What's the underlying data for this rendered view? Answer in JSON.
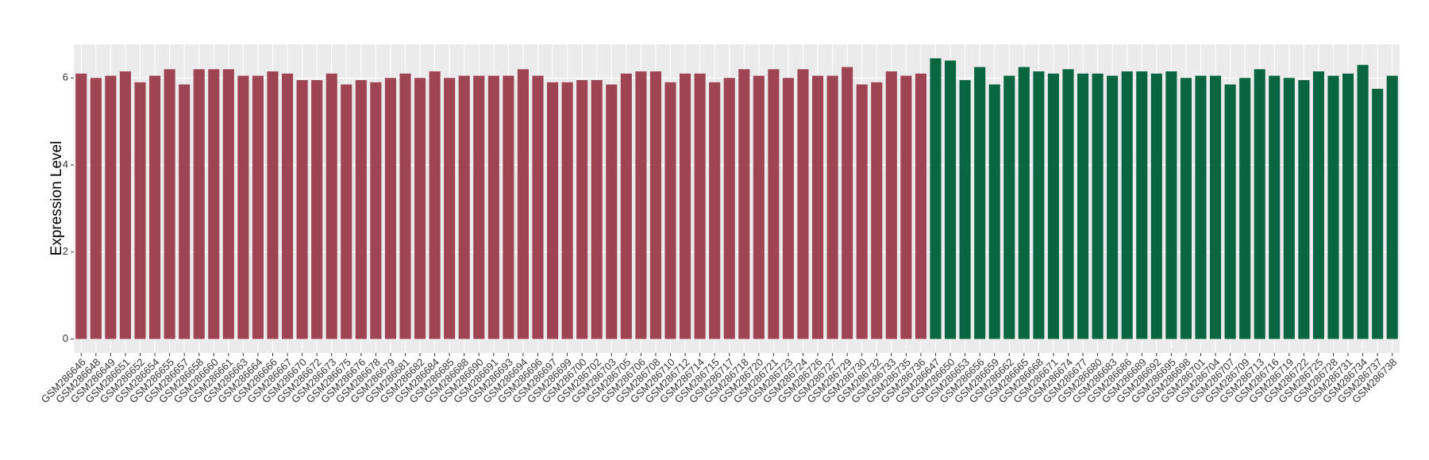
{
  "chart_data": {
    "type": "bar",
    "y_label": "Expression Level",
    "categories": [
      "GSM286646",
      "GSM286648",
      "GSM286649",
      "GSM286651",
      "GSM286652",
      "GSM286654",
      "GSM286655",
      "GSM286657",
      "GSM286658",
      "GSM286660",
      "GSM286661",
      "GSM286663",
      "GSM286664",
      "GSM286666",
      "GSM286667",
      "GSM286670",
      "GSM286672",
      "GSM286673",
      "GSM286675",
      "GSM286676",
      "GSM286678",
      "GSM286679",
      "GSM286681",
      "GSM286682",
      "GSM286684",
      "GSM286685",
      "GSM286688",
      "GSM286690",
      "GSM286691",
      "GSM286693",
      "GSM286694",
      "GSM286696",
      "GSM286697",
      "GSM286699",
      "GSM286700",
      "GSM286702",
      "GSM286703",
      "GSM286705",
      "GSM286706",
      "GSM286708",
      "GSM286710",
      "GSM286712",
      "GSM286714",
      "GSM286715",
      "GSM286717",
      "GSM286718",
      "GSM286720",
      "GSM286721",
      "GSM286723",
      "GSM286724",
      "GSM286726",
      "GSM286727",
      "GSM286729",
      "GSM286730",
      "GSM286732",
      "GSM286733",
      "GSM286735",
      "GSM286736",
      "GSM286647",
      "GSM286650",
      "GSM286653",
      "GSM286656",
      "GSM286659",
      "GSM286662",
      "GSM286665",
      "GSM286668",
      "GSM286671",
      "GSM286674",
      "GSM286677",
      "GSM286680",
      "GSM286683",
      "GSM286686",
      "GSM286689",
      "GSM286692",
      "GSM286695",
      "GSM286698",
      "GSM286701",
      "GSM286704",
      "GSM286707",
      "GSM286709",
      "GSM286713",
      "GSM286716",
      "GSM286719",
      "GSM286722",
      "GSM286725",
      "GSM286728",
      "GSM286731",
      "GSM286734",
      "GSM286737",
      "GSM286738"
    ],
    "values": [
      6.1,
      6.0,
      6.05,
      6.15,
      5.9,
      6.05,
      6.2,
      5.85,
      6.2,
      6.2,
      6.2,
      6.05,
      6.05,
      6.15,
      6.1,
      5.95,
      5.95,
      6.1,
      5.85,
      5.95,
      5.9,
      6.0,
      6.1,
      6.0,
      6.15,
      6.0,
      6.05,
      6.05,
      6.05,
      6.05,
      6.2,
      6.05,
      5.9,
      5.9,
      5.95,
      5.95,
      5.85,
      6.1,
      6.15,
      6.15,
      5.9,
      6.1,
      6.1,
      5.9,
      6.0,
      6.2,
      6.05,
      6.2,
      6.0,
      6.2,
      6.05,
      6.05,
      6.25,
      5.85,
      5.9,
      6.15,
      6.05,
      6.1,
      6.45,
      6.4,
      5.95,
      6.25,
      5.85,
      6.05,
      6.25,
      6.15,
      6.1,
      6.2,
      6.1,
      6.1,
      6.05,
      6.15,
      6.15,
      6.1,
      6.15,
      6.0,
      6.05,
      6.05,
      5.85,
      6.0,
      6.2,
      6.05,
      6.0,
      5.95,
      6.15,
      6.05,
      6.1,
      6.3,
      5.75,
      6.05
    ],
    "bar_colors": [
      "#9e4452",
      "#9e4452",
      "#9e4452",
      "#9e4452",
      "#9e4452",
      "#9e4452",
      "#9e4452",
      "#9e4452",
      "#9e4452",
      "#9e4452",
      "#9e4452",
      "#9e4452",
      "#9e4452",
      "#9e4452",
      "#9e4452",
      "#9e4452",
      "#9e4452",
      "#9e4452",
      "#9e4452",
      "#9e4452",
      "#9e4452",
      "#9e4452",
      "#9e4452",
      "#9e4452",
      "#9e4452",
      "#9e4452",
      "#9e4452",
      "#9e4452",
      "#9e4452",
      "#9e4452",
      "#9e4452",
      "#9e4452",
      "#9e4452",
      "#9e4452",
      "#9e4452",
      "#9e4452",
      "#9e4452",
      "#9e4452",
      "#9e4452",
      "#9e4452",
      "#9e4452",
      "#9e4452",
      "#9e4452",
      "#9e4452",
      "#9e4452",
      "#9e4452",
      "#9e4452",
      "#9e4452",
      "#9e4452",
      "#9e4452",
      "#9e4452",
      "#9e4452",
      "#9e4452",
      "#9e4452",
      "#9e4452",
      "#9e4452",
      "#9e4452",
      "#9e4452",
      "#0a6541",
      "#0a6541",
      "#0a6541",
      "#0a6541",
      "#0a6541",
      "#0a6541",
      "#0a6541",
      "#0a6541",
      "#0a6541",
      "#0a6541",
      "#0a6541",
      "#0a6541",
      "#0a6541",
      "#0a6541",
      "#0a6541",
      "#0a6541",
      "#0a6541",
      "#0a6541",
      "#0a6541",
      "#0a6541",
      "#0a6541",
      "#0a6541",
      "#0a6541",
      "#0a6541",
      "#0a6541",
      "#0a6541",
      "#0a6541",
      "#0a6541",
      "#0a6541",
      "#0a6541",
      "#0a6541",
      "#0a6541"
    ],
    "ylim": [
      -0.32,
      6.77
    ],
    "yticks": [
      0,
      2,
      4,
      6
    ],
    "grid": true,
    "panel_color": "#ebebeb"
  }
}
